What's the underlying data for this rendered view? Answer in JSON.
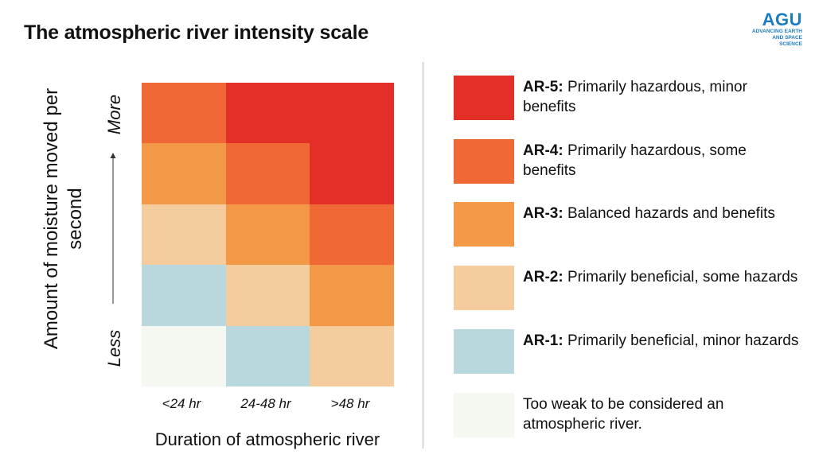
{
  "title": "The atmospheric river intensity scale",
  "logo": {
    "mark": "AGU",
    "line1": "ADVANCING EARTH",
    "line2": "AND SPACE SCIENCE"
  },
  "colors": {
    "weak": "#f5f8f1",
    "ar1": "#b8d8dd",
    "ar2": "#f4cc9e",
    "ar3": "#f39846",
    "ar4": "#ef6836",
    "ar5": "#e42e28"
  },
  "chart_data": {
    "type": "heatmap",
    "title": "The atmospheric river intensity scale",
    "xlabel": "Duration of atmospheric river",
    "ylabel": "Amount of moisture moved per second",
    "y_direction": {
      "top": "More",
      "bottom": "Less"
    },
    "x_categories": [
      "<24 hr",
      "24-48 hr",
      ">48 hr"
    ],
    "rows_top_to_bottom": [
      [
        "AR-4",
        "AR-5",
        "AR-5"
      ],
      [
        "AR-3",
        "AR-4",
        "AR-5"
      ],
      [
        "AR-2",
        "AR-3",
        "AR-4"
      ],
      [
        "AR-1",
        "AR-2",
        "AR-3"
      ],
      [
        "weak",
        "AR-1",
        "AR-2"
      ]
    ]
  },
  "legend": [
    {
      "key": "ar5",
      "code": "AR-5:",
      "text": " Primarily hazardous, minor benefits"
    },
    {
      "key": "ar4",
      "code": "AR-4:",
      "text": " Primarily hazardous, some benefits"
    },
    {
      "key": "ar3",
      "code": "AR-3:",
      "text": " Balanced hazards and benefits"
    },
    {
      "key": "ar2",
      "code": "AR-2:",
      "text": " Primarily beneficial, some hazards"
    },
    {
      "key": "ar1",
      "code": "AR-1:",
      "text": " Primarily beneficial, minor hazards"
    },
    {
      "key": "weak",
      "code": "",
      "text": "Too weak to be considered an atmospheric river."
    }
  ]
}
